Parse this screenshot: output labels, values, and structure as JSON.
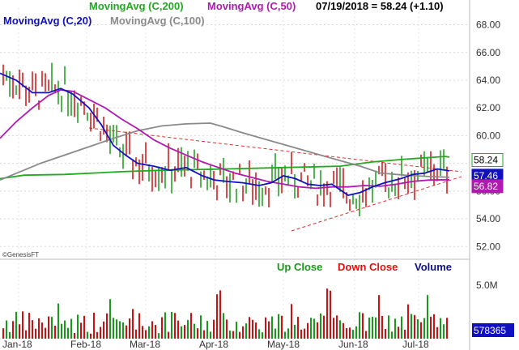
{
  "chart_data": {
    "type": "line",
    "title": "07/19/2018 = 58.24 (+1.10)",
    "legend": [
      {
        "name": "MovingAvg (C,200)",
        "color": "#1faa1f"
      },
      {
        "name": "MovingAvg (C,50)",
        "color": "#b01ab0"
      },
      {
        "name": "MovingAvg (C,20)",
        "color": "#1010c0"
      },
      {
        "name": "MovingAvg (C,100)",
        "color": "#8a8a8a"
      }
    ],
    "x_labels": [
      "Jan-18",
      "Feb-18",
      "Mar-18",
      "Apr-18",
      "May-18",
      "Jun-18",
      "Jul-18"
    ],
    "y_ticks": [
      "52.00",
      "54.00",
      "56.00",
      "58.00",
      "60.00",
      "62.00",
      "64.00",
      "66.00",
      "68.00"
    ],
    "ylim": [
      51.2,
      69.2
    ],
    "value_tags": [
      {
        "text": "58.24",
        "value": 58.24,
        "fill": "#ffffff",
        "stroke": "#1faa1f",
        "color": "#000000"
      },
      {
        "text": "57.46",
        "value": 57.46,
        "fill": "#1010c0",
        "stroke": "#1010c0",
        "color": "#ffffff"
      },
      {
        "text": "56.82",
        "value": 56.82,
        "fill": "#b01ab0",
        "stroke": "#b01ab0",
        "color": "#ffffff"
      }
    ],
    "series": [
      {
        "name": "MovingAvg (C,200)",
        "color": "#1faa1f",
        "values": [
          [
            0,
            56.9
          ],
          [
            30,
            57.15
          ],
          [
            80,
            57.2
          ],
          [
            150,
            57.4
          ],
          [
            200,
            57.5
          ],
          [
            280,
            57.6
          ],
          [
            350,
            57.7
          ],
          [
            420,
            57.8
          ],
          [
            460,
            58.1
          ],
          [
            500,
            58.3
          ],
          [
            550,
            58.5
          ],
          [
            555,
            58.45
          ]
        ]
      },
      {
        "name": "MovingAvg (C,100)",
        "color": "#8a8a8a",
        "values": [
          [
            0,
            56.8
          ],
          [
            25,
            57.4
          ],
          [
            50,
            58.0
          ],
          [
            80,
            58.6
          ],
          [
            110,
            59.2
          ],
          [
            140,
            59.8
          ],
          [
            170,
            60.35
          ],
          [
            200,
            60.7
          ],
          [
            230,
            60.85
          ],
          [
            260,
            60.9
          ],
          [
            275,
            60.65
          ],
          [
            300,
            60.2
          ],
          [
            330,
            59.7
          ],
          [
            360,
            59.2
          ],
          [
            390,
            58.7
          ],
          [
            420,
            58.2
          ],
          [
            445,
            57.8
          ],
          [
            470,
            57.3
          ],
          [
            500,
            57.15
          ],
          [
            530,
            57.05
          ],
          [
            555,
            57.0
          ]
        ]
      },
      {
        "name": "MovingAvg (C,50)",
        "color": "#b01ab0",
        "values": [
          [
            0,
            59.8
          ],
          [
            20,
            61.0
          ],
          [
            40,
            62.0
          ],
          [
            60,
            62.9
          ],
          [
            75,
            63.3
          ],
          [
            90,
            63.2
          ],
          [
            110,
            62.6
          ],
          [
            130,
            62.0
          ],
          [
            150,
            61.2
          ],
          [
            170,
            60.5
          ],
          [
            190,
            59.7
          ],
          [
            210,
            59.1
          ],
          [
            230,
            58.6
          ],
          [
            250,
            58.1
          ],
          [
            270,
            57.7
          ],
          [
            290,
            57.3
          ],
          [
            310,
            57.0
          ],
          [
            330,
            56.7
          ],
          [
            350,
            56.5
          ],
          [
            370,
            56.3
          ],
          [
            390,
            56.2
          ],
          [
            410,
            56.3
          ],
          [
            430,
            56.3
          ],
          [
            450,
            56.4
          ],
          [
            470,
            56.35
          ],
          [
            490,
            56.5
          ],
          [
            510,
            56.7
          ],
          [
            530,
            56.8
          ],
          [
            555,
            56.82
          ]
        ]
      },
      {
        "name": "MovingAvg (C,20)",
        "color": "#1010c0",
        "values": [
          [
            0,
            64.5
          ],
          [
            20,
            64.0
          ],
          [
            40,
            63.1
          ],
          [
            60,
            63.1
          ],
          [
            75,
            63.4
          ],
          [
            90,
            63.0
          ],
          [
            110,
            62.0
          ],
          [
            125,
            60.8
          ],
          [
            140,
            59.3
          ],
          [
            155,
            58.6
          ],
          [
            170,
            58.0
          ],
          [
            190,
            57.8
          ],
          [
            210,
            57.5
          ],
          [
            230,
            57.7
          ],
          [
            250,
            57.1
          ],
          [
            265,
            56.8
          ],
          [
            280,
            56.7
          ],
          [
            300,
            56.6
          ],
          [
            320,
            56.4
          ],
          [
            335,
            56.6
          ],
          [
            350,
            57.1
          ],
          [
            365,
            56.9
          ],
          [
            380,
            56.5
          ],
          [
            395,
            56.4
          ],
          [
            410,
            56.5
          ],
          [
            420,
            56.1
          ],
          [
            430,
            55.7
          ],
          [
            445,
            55.9
          ],
          [
            460,
            56.3
          ],
          [
            475,
            56.6
          ],
          [
            495,
            56.9
          ],
          [
            510,
            57.2
          ],
          [
            525,
            57.3
          ],
          [
            540,
            57.6
          ],
          [
            555,
            57.46
          ]
        ]
      }
    ],
    "annotations": [
      "Up Close",
      "Down Close",
      "Volume",
      "©GenesisFT"
    ],
    "volume": {
      "y_tick": "5.0M",
      "last_value": "578365"
    }
  }
}
